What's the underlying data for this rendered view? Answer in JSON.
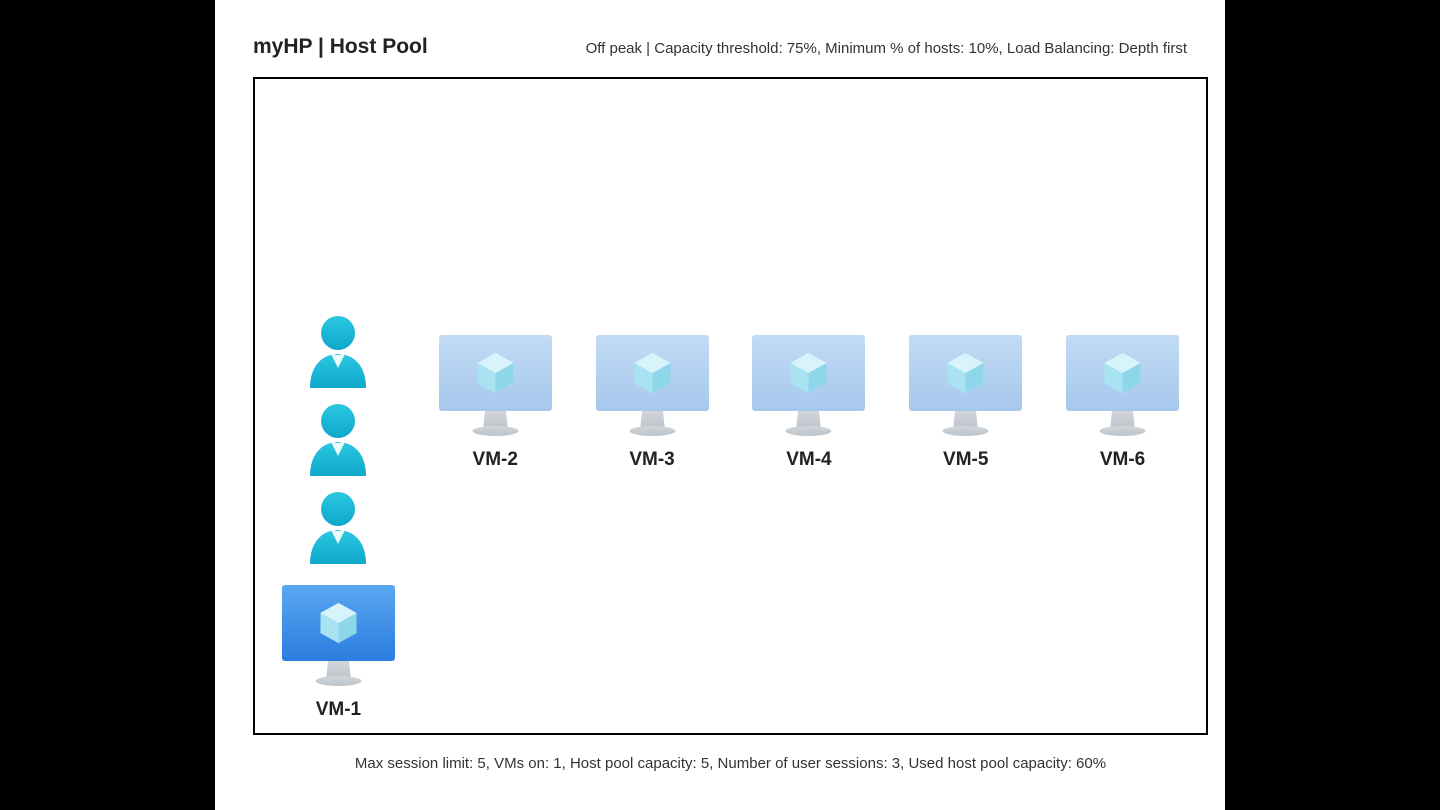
{
  "title": "myHP | Host Pool",
  "header_status": "Off peak | Capacity threshold: 75%, Minimum % of hosts: 10%, Load Balancing: Depth first",
  "footer_stats": "Max session limit: 5, VMs on: 1, Host pool capacity: 5, Number of user sessions: 3, Used host pool capacity: 60%",
  "colors": {
    "background": "#ffffff",
    "page_bg": "#000000",
    "border": "#000000",
    "text": "#222222",
    "user_fill_top": "#2cc7e0",
    "user_fill_bottom": "#0ea8cc",
    "vm_active_top": "#5aa7f0",
    "vm_active_bottom": "#2b7de0",
    "vm_inactive_top": "#c2dbf5",
    "vm_inactive_bottom": "#a6c8ec",
    "vm_stand": "#bcc3c9",
    "cube_light": "#d9f3fa",
    "cube_mid": "#a9e3f2",
    "cube_dark": "#8ed6ea"
  },
  "diagram": {
    "type": "infographic",
    "vms": [
      {
        "label": "VM-1",
        "active": true,
        "users": 3
      },
      {
        "label": "VM-2",
        "active": false,
        "users": 0
      },
      {
        "label": "VM-3",
        "active": false,
        "users": 0
      },
      {
        "label": "VM-4",
        "active": false,
        "users": 0
      },
      {
        "label": "VM-5",
        "active": false,
        "users": 0
      },
      {
        "label": "VM-6",
        "active": false,
        "users": 0
      }
    ]
  },
  "fonts": {
    "title_size": 21,
    "status_size": 15,
    "label_size": 19,
    "footer_size": 15
  }
}
